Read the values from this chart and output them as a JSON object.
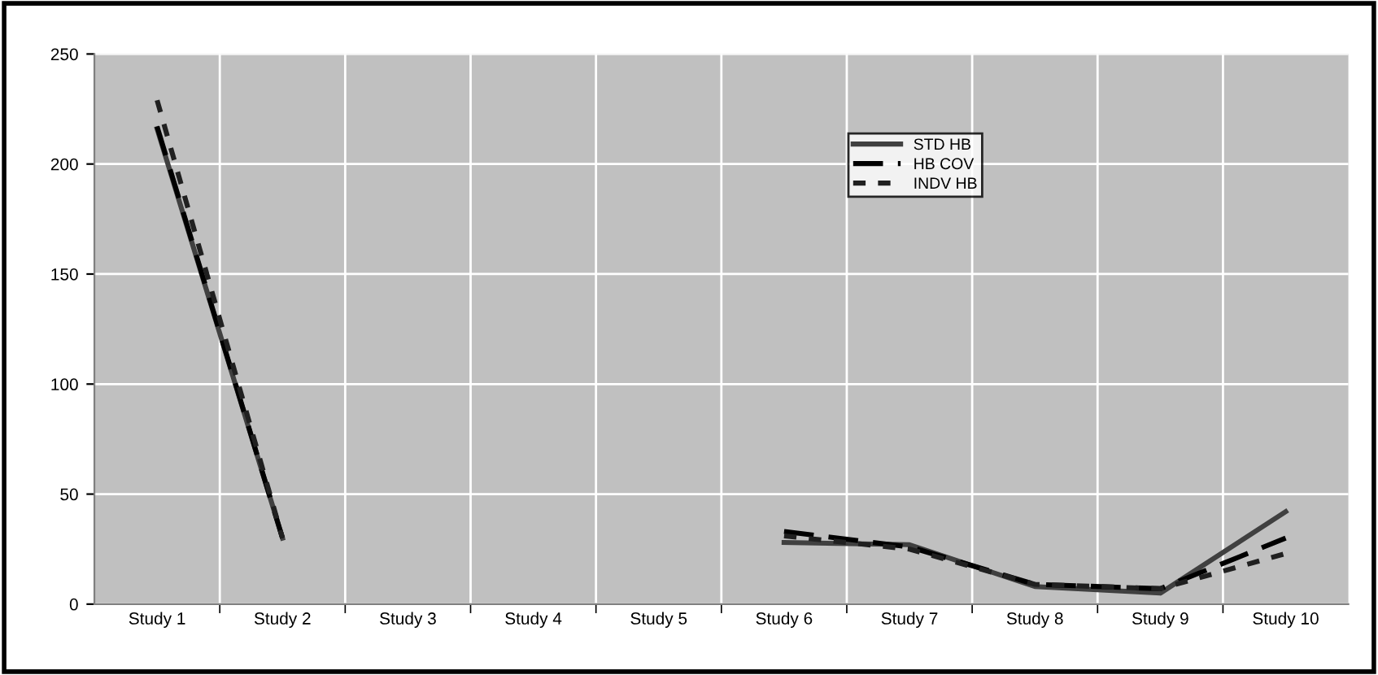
{
  "chart_data": {
    "type": "line",
    "categories": [
      "Study 1",
      "Study 2",
      "Study 3",
      "Study 4",
      "Study 5",
      "Study 6",
      "Study 7",
      "Study 8",
      "Study 9",
      "Study 10"
    ],
    "series": [
      {
        "name": "STD HB",
        "color": "#404040",
        "line_style": "solid",
        "values": [
          216,
          30,
          null,
          null,
          null,
          28,
          27,
          8,
          5,
          42
        ]
      },
      {
        "name": "HB COV",
        "color": "#000000",
        "line_style": "dashed",
        "values": [
          217,
          30,
          null,
          null,
          null,
          33,
          26,
          9,
          7,
          30
        ]
      },
      {
        "name": "INDV HB",
        "color": "#202020",
        "line_style": "dotted",
        "values": [
          229,
          30,
          null,
          null,
          null,
          31,
          25,
          9,
          7,
          23
        ]
      }
    ],
    "ylim": [
      0,
      250
    ],
    "yticks": [
      0,
      50,
      100,
      150,
      200,
      250
    ],
    "grid": true,
    "legend": "top right"
  }
}
